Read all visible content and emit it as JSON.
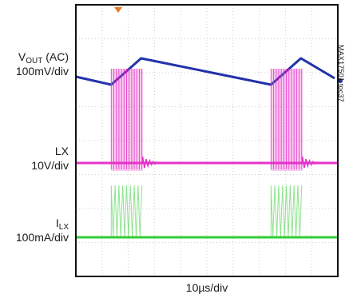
{
  "chart_data": {
    "type": "line",
    "title": "",
    "xlabel": "10µs/div",
    "graph_tag": "MAX17501 toc37",
    "grid": {
      "divisions_x": 10,
      "divisions_y": 8,
      "visible": true,
      "style": "dotted"
    },
    "channels": [
      {
        "name_main": "V",
        "name_sub": "OUT",
        "name_suffix": " (AC)",
        "scale": "100mV/div",
        "color": "#2233aa",
        "shape": "sawtooth"
      },
      {
        "name_main": "LX",
        "name_sub": "",
        "name_suffix": "",
        "scale": "10V/div",
        "color": "#e633c9",
        "shape": "switching-burst"
      },
      {
        "name_main": "I",
        "name_sub": "LX",
        "name_suffix": "",
        "scale": "100mA/div",
        "color": "#33cc33",
        "shape": "current-burst"
      }
    ],
    "trigger_marker_color": "#e87722",
    "burst_period_div": 6.1,
    "burst_width_div": 1.2,
    "first_burst_start_div": 1.35
  }
}
